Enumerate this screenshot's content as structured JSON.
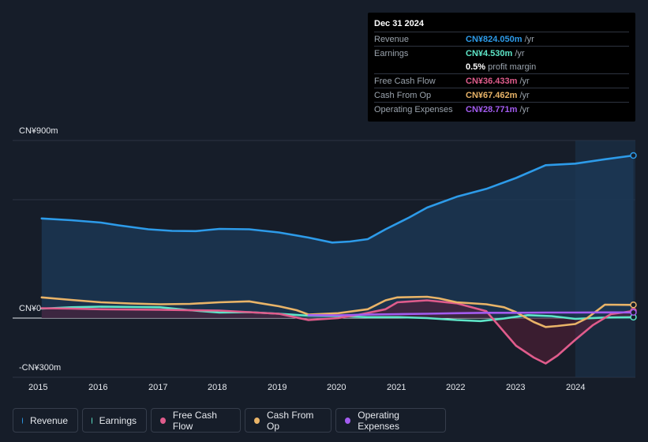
{
  "tooltip": {
    "date": "Dec 31 2024",
    "rows": [
      {
        "label": "Revenue",
        "value": "CN¥824.050m",
        "unit": "/yr",
        "color": "#2d9be9"
      },
      {
        "label": "Earnings",
        "value": "CN¥4.530m",
        "unit": "/yr",
        "color": "#5ee6c8"
      },
      {
        "label": "",
        "value": "0.5%",
        "unit": "profit margin",
        "color": "#ffffff"
      },
      {
        "label": "Free Cash Flow",
        "value": "CN¥36.433m",
        "unit": "/yr",
        "color": "#e05c8c"
      },
      {
        "label": "Cash From Op",
        "value": "CN¥67.462m",
        "unit": "/yr",
        "color": "#e9b468"
      },
      {
        "label": "Operating Expenses",
        "value": "CN¥28.771m",
        "unit": "/yr",
        "color": "#a35cf0"
      }
    ]
  },
  "chart_data": {
    "type": "area",
    "title": "",
    "ylim": [
      -300,
      900
    ],
    "y_tick_labels": [
      "CN¥900m",
      "CN¥0",
      "-CN¥300m"
    ],
    "x_tick_labels": [
      "2015",
      "2016",
      "2017",
      "2018",
      "2019",
      "2020",
      "2021",
      "2022",
      "2023",
      "2024"
    ],
    "xlim": [
      2014.95,
      2025.0
    ],
    "forecast_start": 2024.0,
    "series": [
      {
        "name": "Revenue",
        "color": "#2d9be9",
        "fill": true,
        "points": [
          [
            2015.0,
            505
          ],
          [
            2015.5,
            496
          ],
          [
            2016.0,
            484
          ],
          [
            2016.3,
            470
          ],
          [
            2016.8,
            450
          ],
          [
            2017.2,
            442
          ],
          [
            2017.6,
            441
          ],
          [
            2018.0,
            452
          ],
          [
            2018.5,
            450
          ],
          [
            2019.0,
            434
          ],
          [
            2019.5,
            408
          ],
          [
            2019.9,
            383
          ],
          [
            2020.2,
            388
          ],
          [
            2020.5,
            400
          ],
          [
            2020.8,
            450
          ],
          [
            2021.2,
            510
          ],
          [
            2021.5,
            560
          ],
          [
            2022.0,
            615
          ],
          [
            2022.5,
            655
          ],
          [
            2023.0,
            710
          ],
          [
            2023.5,
            775
          ],
          [
            2024.0,
            783
          ],
          [
            2024.5,
            805
          ],
          [
            2024.98,
            824
          ]
        ]
      },
      {
        "name": "Earnings",
        "color": "#5ee6c8",
        "fill": false,
        "points": [
          [
            2015.0,
            48
          ],
          [
            2015.5,
            55
          ],
          [
            2016.0,
            58
          ],
          [
            2017.0,
            55
          ],
          [
            2017.5,
            40
          ],
          [
            2018.0,
            28
          ],
          [
            2018.5,
            30
          ],
          [
            2019.0,
            22
          ],
          [
            2019.5,
            12
          ],
          [
            2020.0,
            10
          ],
          [
            2020.5,
            5
          ],
          [
            2021.0,
            5
          ],
          [
            2021.5,
            0
          ],
          [
            2022.0,
            -10
          ],
          [
            2022.4,
            -15
          ],
          [
            2022.8,
            -2
          ],
          [
            2023.2,
            15
          ],
          [
            2023.6,
            10
          ],
          [
            2024.0,
            -4
          ],
          [
            2024.5,
            3
          ],
          [
            2024.98,
            4.5
          ]
        ]
      },
      {
        "name": "Free Cash Flow",
        "color": "#e05c8c",
        "fill": true,
        "points": [
          [
            2015.0,
            50
          ],
          [
            2015.5,
            48
          ],
          [
            2016.0,
            45
          ],
          [
            2017.0,
            42
          ],
          [
            2018.0,
            38
          ],
          [
            2019.0,
            22
          ],
          [
            2019.5,
            -10
          ],
          [
            2020.0,
            0
          ],
          [
            2020.4,
            20
          ],
          [
            2020.8,
            45
          ],
          [
            2021.0,
            80
          ],
          [
            2021.5,
            90
          ],
          [
            2022.0,
            75
          ],
          [
            2022.5,
            35
          ],
          [
            2022.8,
            -70
          ],
          [
            2023.0,
            -140
          ],
          [
            2023.3,
            -200
          ],
          [
            2023.5,
            -230
          ],
          [
            2023.7,
            -190
          ],
          [
            2024.0,
            -110
          ],
          [
            2024.3,
            -35
          ],
          [
            2024.6,
            20
          ],
          [
            2024.98,
            36
          ]
        ]
      },
      {
        "name": "Cash From Op",
        "color": "#e9b468",
        "fill": false,
        "points": [
          [
            2015.0,
            105
          ],
          [
            2015.5,
            92
          ],
          [
            2016.0,
            80
          ],
          [
            2016.5,
            74
          ],
          [
            2017.0,
            70
          ],
          [
            2017.5,
            72
          ],
          [
            2018.0,
            80
          ],
          [
            2018.5,
            85
          ],
          [
            2018.7,
            75
          ],
          [
            2019.0,
            60
          ],
          [
            2019.3,
            40
          ],
          [
            2019.5,
            18
          ],
          [
            2020.0,
            25
          ],
          [
            2020.5,
            45
          ],
          [
            2020.8,
            90
          ],
          [
            2021.0,
            105
          ],
          [
            2021.5,
            108
          ],
          [
            2021.7,
            100
          ],
          [
            2022.0,
            80
          ],
          [
            2022.5,
            70
          ],
          [
            2022.8,
            55
          ],
          [
            2023.0,
            30
          ],
          [
            2023.3,
            -20
          ],
          [
            2023.5,
            -45
          ],
          [
            2023.7,
            -40
          ],
          [
            2024.0,
            -30
          ],
          [
            2024.2,
            0
          ],
          [
            2024.5,
            68
          ],
          [
            2024.98,
            67
          ]
        ]
      },
      {
        "name": "Operating Expenses",
        "color": "#a35cf0",
        "fill": false,
        "points": [
          [
            2019.5,
            15
          ],
          [
            2020.0,
            14
          ],
          [
            2020.5,
            18
          ],
          [
            2021.0,
            20
          ],
          [
            2021.5,
            22
          ],
          [
            2022.0,
            25
          ],
          [
            2022.5,
            27
          ],
          [
            2023.0,
            27
          ],
          [
            2023.5,
            28
          ],
          [
            2024.0,
            28
          ],
          [
            2024.5,
            29
          ],
          [
            2024.98,
            28.8
          ]
        ]
      }
    ]
  },
  "legend": [
    "Revenue",
    "Earnings",
    "Free Cash Flow",
    "Cash From Op",
    "Operating Expenses"
  ]
}
